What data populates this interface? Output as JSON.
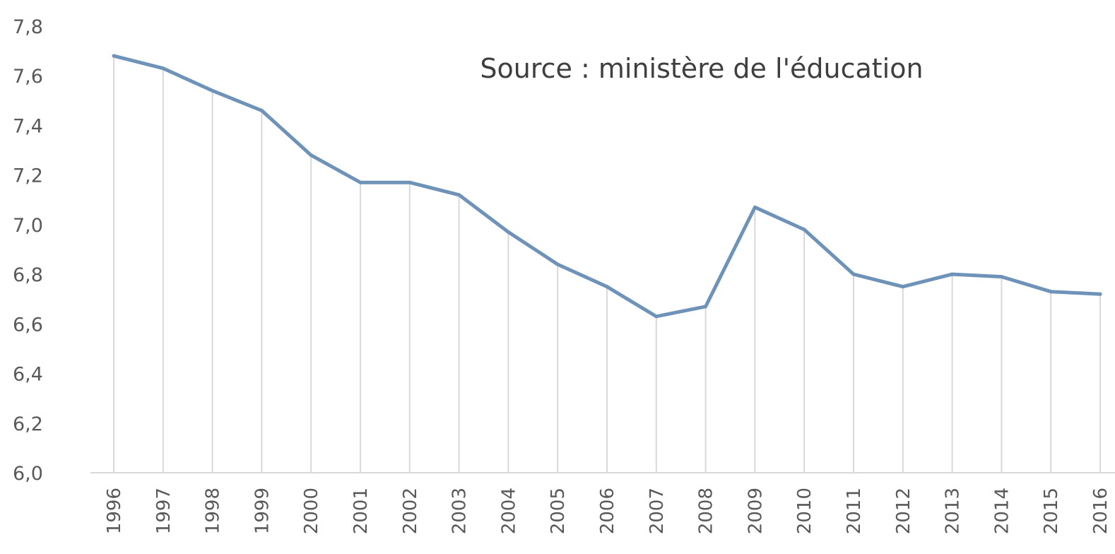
{
  "chart_data": {
    "type": "line",
    "title": "",
    "xlabel": "",
    "ylabel": "",
    "annotation": "Source : ministère de l'éducation",
    "categories": [
      "1996",
      "1997",
      "1998",
      "1999",
      "2000",
      "2001",
      "2002",
      "2003",
      "2004",
      "2005",
      "2006",
      "2007",
      "2008",
      "2009",
      "2010",
      "2011",
      "2012",
      "2013",
      "2014",
      "2015",
      "2016"
    ],
    "series": [
      {
        "values": [
          7.68,
          7.63,
          7.54,
          7.46,
          7.28,
          7.17,
          7.17,
          7.12,
          6.97,
          6.84,
          6.75,
          6.63,
          6.67,
          7.07,
          6.98,
          6.8,
          6.75,
          6.8,
          6.79,
          6.73,
          6.72
        ],
        "color": "#6f93b8"
      }
    ],
    "yticks": [
      "6,0",
      "6,2",
      "6,4",
      "6,6",
      "6,8",
      "7,0",
      "7,2",
      "7,4",
      "7,6",
      "7,8"
    ],
    "ylim": [
      6.0,
      7.8
    ],
    "vertical_gridlines": true,
    "horizontal_gridlines": false,
    "grid_color": "#d9d9d9"
  }
}
